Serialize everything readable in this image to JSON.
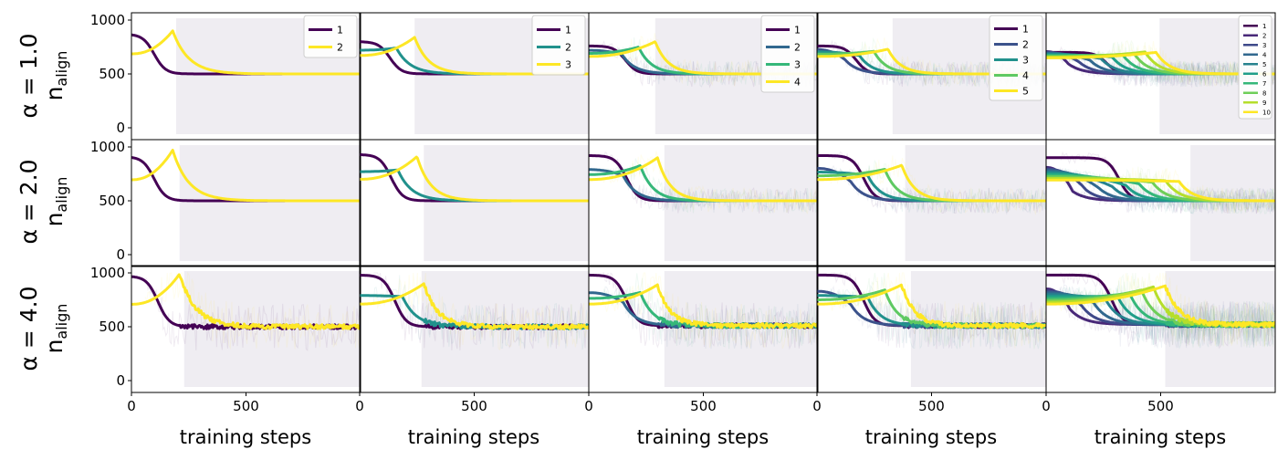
{
  "figure": {
    "shared_y_ticks": [
      "0",
      "500",
      "1000"
    ],
    "shared_x_ticks": [
      "0",
      "500"
    ],
    "xlabel": "training steps"
  },
  "chart_data": {
    "type": "line",
    "layout": "3x5 grid",
    "x_range": [
      0,
      1000
    ],
    "y_range": [
      0,
      1000
    ],
    "xlabel": "training steps",
    "ylabel": "n_align",
    "row_labels": [
      "α = 1.0",
      "α = 2.0",
      "α = 4.0"
    ],
    "row_alpha": [
      1.0,
      2.0,
      4.0
    ],
    "column_series_counts": [
      2,
      3,
      4,
      5,
      10
    ],
    "legend_entries": [
      [
        "1",
        "2"
      ],
      [
        "1",
        "2",
        "3"
      ],
      [
        "1",
        "2",
        "3",
        "4"
      ],
      [
        "1",
        "2",
        "3",
        "4",
        "5"
      ],
      [
        "1",
        "2",
        "3",
        "4",
        "5",
        "6",
        "7",
        "8",
        "9",
        "10"
      ]
    ],
    "colors": {
      "2": [
        "#440154",
        "#fde725"
      ],
      "3": [
        "#440154",
        "#21918c",
        "#fde725"
      ],
      "4": [
        "#440154",
        "#31688e",
        "#35b779",
        "#fde725"
      ],
      "5": [
        "#440154",
        "#3b528b",
        "#21918c",
        "#5ec962",
        "#fde725"
      ],
      "10": [
        "#440154",
        "#482878",
        "#3e4989",
        "#31688e",
        "#26828e",
        "#1f9e89",
        "#35b779",
        "#6ece58",
        "#b5de2b",
        "#fde725"
      ]
    },
    "shade_color": "#c9c3d3",
    "shade_start": [
      [
        195,
        240,
        290,
        330,
        495
      ],
      [
        210,
        280,
        330,
        385,
        630
      ],
      [
        230,
        270,
        330,
        410,
        520
      ]
    ],
    "series_params": [
      [
        {
          "start": 870,
          "peak": 900,
          "peak_x": 180,
          "width": 70,
          "settle": 500
        },
        {
          "start": 800,
          "peak": 840,
          "peak_x": 240,
          "width": 60,
          "settle": 500
        },
        {
          "start": 760,
          "peak": 800,
          "peak_x": 290,
          "width": 55,
          "settle": 500
        },
        {
          "start": 760,
          "peak": 730,
          "peak_x": 310,
          "width": 55,
          "settle": 500
        },
        {
          "start": 700,
          "peak": 700,
          "peak_x": 480,
          "width": 60,
          "settle": 500
        }
      ],
      [
        {
          "start": 910,
          "peak": 970,
          "peak_x": 180,
          "width": 70,
          "settle": 500
        },
        {
          "start": 930,
          "peak": 910,
          "peak_x": 250,
          "width": 60,
          "settle": 500
        },
        {
          "start": 920,
          "peak": 900,
          "peak_x": 300,
          "width": 55,
          "settle": 500
        },
        {
          "start": 920,
          "peak": 830,
          "peak_x": 370,
          "width": 55,
          "settle": 500
        },
        {
          "start": 900,
          "peak": 680,
          "peak_x": 580,
          "width": 60,
          "settle": 500
        }
      ],
      [
        {
          "start": 970,
          "peak": 990,
          "peak_x": 210,
          "width": 70,
          "settle": 500
        },
        {
          "start": 980,
          "peak": 900,
          "peak_x": 280,
          "width": 60,
          "settle": 500
        },
        {
          "start": 980,
          "peak": 890,
          "peak_x": 300,
          "width": 55,
          "settle": 510
        },
        {
          "start": 980,
          "peak": 890,
          "peak_x": 370,
          "width": 55,
          "settle": 510
        },
        {
          "start": 980,
          "peak": 880,
          "peak_x": 520,
          "width": 60,
          "settle": 520
        }
      ]
    ]
  }
}
